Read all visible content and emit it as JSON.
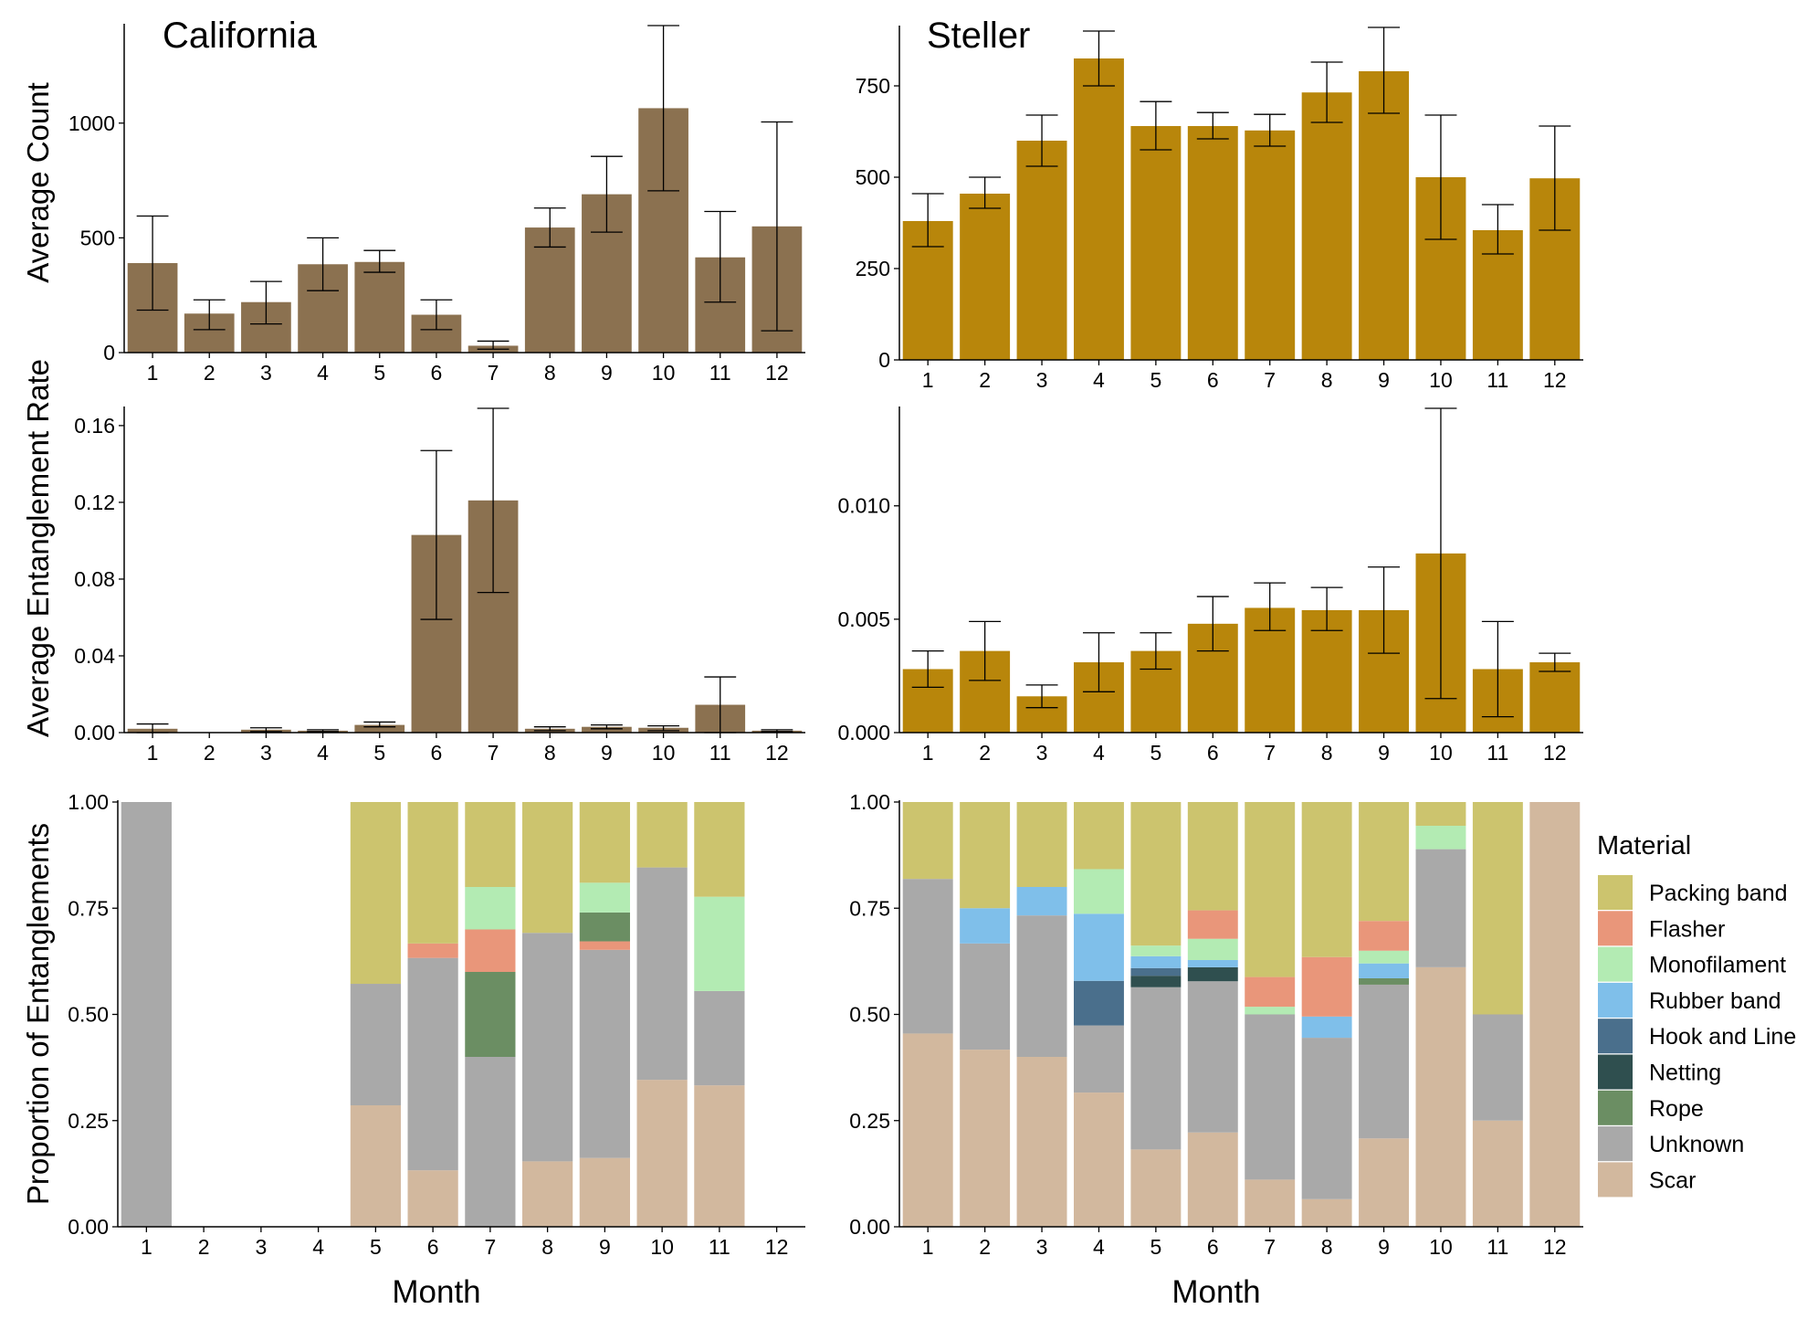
{
  "labels": {
    "california": "California",
    "steller": "Steller",
    "y_count": "Average Count",
    "y_rate": "Average Entanglement Rate",
    "y_prop": "Proportion of Entanglements",
    "x_month": "Month",
    "legend_title": "Material"
  },
  "colors": {
    "california_bar": "#8B7150",
    "steller_bar": "#B8860B",
    "materials": {
      "Packing band": "#CCC46E",
      "Flasher": "#E9967A",
      "Monofilament": "#B3EBB3",
      "Rubber band": "#7FBFEA",
      "Hook and Line": "#4A6F8C",
      "Netting": "#2F4F4F",
      "Rope": "#6B8E63",
      "Unknown": "#A9A9A9",
      "Scar": "#D2B89E"
    }
  },
  "chart_data": [
    {
      "type": "bar",
      "id": "ca_count",
      "title": "California",
      "categories": [
        "1",
        "2",
        "3",
        "4",
        "5",
        "6",
        "7",
        "8",
        "9",
        "10",
        "11",
        "12"
      ],
      "values": [
        390,
        170,
        220,
        385,
        395,
        165,
        30,
        545,
        690,
        1065,
        415,
        550
      ],
      "error_low": [
        185,
        100,
        125,
        270,
        350,
        100,
        15,
        460,
        525,
        705,
        220,
        95
      ],
      "error_high": [
        595,
        230,
        310,
        500,
        445,
        230,
        50,
        630,
        855,
        1425,
        615,
        1005
      ],
      "ylim": [
        0,
        1425
      ],
      "yticks": [
        0,
        500,
        1000
      ],
      "ylabel": "Average Count"
    },
    {
      "type": "bar",
      "id": "st_count",
      "title": "Steller",
      "categories": [
        "1",
        "2",
        "3",
        "4",
        "5",
        "6",
        "7",
        "8",
        "9",
        "10",
        "11",
        "12"
      ],
      "values": [
        380,
        455,
        600,
        825,
        640,
        640,
        628,
        732,
        790,
        500,
        355,
        497
      ],
      "error_low": [
        310,
        415,
        530,
        750,
        575,
        605,
        585,
        650,
        675,
        330,
        290,
        355
      ],
      "error_high": [
        455,
        500,
        670,
        900,
        707,
        677,
        672,
        815,
        910,
        670,
        425,
        640
      ],
      "ylim": [
        0,
        910
      ],
      "yticks": [
        0,
        250,
        500,
        750
      ]
    },
    {
      "type": "bar",
      "id": "ca_rate",
      "categories": [
        "1",
        "2",
        "3",
        "4",
        "5",
        "6",
        "7",
        "8",
        "9",
        "10",
        "11",
        "12"
      ],
      "values": [
        0.002,
        0,
        0.0015,
        0.001,
        0.004,
        0.103,
        0.121,
        0.002,
        0.003,
        0.0025,
        0.0145,
        0.001
      ],
      "error_low": [
        0,
        0,
        0.0005,
        0.0005,
        0.003,
        0.059,
        0.073,
        0.001,
        0.002,
        0.001,
        0,
        0.0005
      ],
      "error_high": [
        0.0045,
        0,
        0.0025,
        0.0015,
        0.0055,
        0.147,
        0.169,
        0.003,
        0.004,
        0.0035,
        0.029,
        0.0015
      ],
      "ylim": [
        0,
        0.169
      ],
      "yticks": [
        0.0,
        0.04,
        0.08,
        0.12,
        0.16
      ],
      "ytick_labels": [
        "0.00",
        "0.04",
        "0.08",
        "0.12",
        "0.16"
      ],
      "ylabel": "Average Entanglement Rate"
    },
    {
      "type": "bar",
      "id": "st_rate",
      "categories": [
        "1",
        "2",
        "3",
        "4",
        "5",
        "6",
        "7",
        "8",
        "9",
        "10",
        "11",
        "12"
      ],
      "values": [
        0.0028,
        0.0036,
        0.0016,
        0.0031,
        0.0036,
        0.0048,
        0.0055,
        0.0054,
        0.0054,
        0.0079,
        0.0028,
        0.0031
      ],
      "error_low": [
        0.002,
        0.0023,
        0.0011,
        0.0018,
        0.0028,
        0.0036,
        0.0045,
        0.0045,
        0.0035,
        0.0015,
        0.0007,
        0.0027
      ],
      "error_high": [
        0.0036,
        0.0049,
        0.0021,
        0.0044,
        0.0044,
        0.006,
        0.0066,
        0.0064,
        0.0073,
        0.0143,
        0.0049,
        0.0035
      ],
      "ylim": [
        0,
        0.0143
      ],
      "yticks": [
        0,
        0.005,
        0.01
      ],
      "ytick_labels": [
        "0.000",
        "0.005",
        "0.010"
      ]
    },
    {
      "type": "bar",
      "stacked": true,
      "id": "ca_prop",
      "xlabel": "Month",
      "categories": [
        "1",
        "2",
        "3",
        "4",
        "5",
        "6",
        "7",
        "8",
        "9",
        "10",
        "11",
        "12"
      ],
      "ylim": [
        0,
        1
      ],
      "yticks": [
        0,
        0.25,
        0.5,
        0.75,
        1
      ],
      "ytick_labels": [
        "0.00",
        "0.25",
        "0.50",
        "0.75",
        "1.00"
      ],
      "ylabel": "Proportion of Entanglements",
      "series": [
        {
          "name": "Scar",
          "values": [
            0,
            0,
            0,
            0,
            0.286,
            0.133,
            0,
            0.154,
            0.162,
            0.346,
            0.333,
            0
          ]
        },
        {
          "name": "Unknown",
          "values": [
            1,
            0,
            0,
            0,
            0.286,
            0.5,
            0.4,
            0.538,
            0.49,
            0.5,
            0.222,
            0
          ]
        },
        {
          "name": "Rope",
          "values": [
            0,
            0,
            0,
            0,
            0,
            0,
            0.2,
            0,
            0,
            0,
            0,
            0
          ]
        },
        {
          "name": "Netting",
          "values": [
            0,
            0,
            0,
            0,
            0,
            0,
            0,
            0,
            0,
            0,
            0,
            0
          ]
        },
        {
          "name": "Hook and Line",
          "values": [
            0,
            0,
            0,
            0,
            0,
            0,
            0,
            0,
            0,
            0,
            0,
            0
          ]
        },
        {
          "name": "Rubber band",
          "values": [
            0,
            0,
            0,
            0,
            0,
            0,
            0,
            0,
            0,
            0,
            0,
            0
          ]
        },
        {
          "name": "Flasher",
          "values": [
            0,
            0,
            0,
            0,
            0,
            0.034,
            0.1,
            0,
            0.02,
            0,
            0,
            0
          ]
        },
        {
          "name": "Rope",
          "values": [
            0,
            0,
            0,
            0,
            0,
            0,
            0,
            0,
            0.068,
            0,
            0,
            0
          ]
        },
        {
          "name": "Monofilament",
          "values": [
            0,
            0,
            0,
            0,
            0,
            0,
            0.1,
            0,
            0.07,
            0,
            0.222,
            0
          ]
        },
        {
          "name": "Packing band",
          "values": [
            0,
            0,
            0,
            0,
            0.428,
            0.333,
            0.2,
            0.308,
            0.19,
            0.154,
            0.223,
            0
          ]
        }
      ]
    },
    {
      "type": "bar",
      "stacked": true,
      "id": "st_prop",
      "xlabel": "Month",
      "categories": [
        "1",
        "2",
        "3",
        "4",
        "5",
        "6",
        "7",
        "8",
        "9",
        "10",
        "11",
        "12"
      ],
      "ylim": [
        0,
        1
      ],
      "yticks": [
        0,
        0.25,
        0.5,
        0.75,
        1
      ],
      "ytick_labels": [
        "0.00",
        "0.25",
        "0.50",
        "0.75",
        "1.00"
      ],
      "legend": {
        "title": "Material",
        "placement": "right"
      },
      "series": [
        {
          "name": "Scar",
          "values": [
            0.455,
            0.417,
            0.4,
            0.316,
            0.182,
            0.222,
            0.111,
            0.065,
            0.208,
            0.611,
            0.25,
            1
          ]
        },
        {
          "name": "Unknown",
          "values": [
            0.364,
            0.25,
            0.333,
            0.158,
            0.382,
            0.356,
            0.389,
            0.38,
            0.362,
            0.278,
            0.25,
            0
          ]
        },
        {
          "name": "Rope",
          "values": [
            0,
            0,
            0,
            0,
            0,
            0,
            0,
            0,
            0.015,
            0,
            0,
            0
          ]
        },
        {
          "name": "Netting",
          "values": [
            0,
            0,
            0,
            0,
            0.027,
            0.033,
            0,
            0,
            0,
            0,
            0,
            0
          ]
        },
        {
          "name": "Hook and Line",
          "values": [
            0,
            0,
            0,
            0.105,
            0.018,
            0,
            0,
            0,
            0,
            0,
            0,
            0
          ]
        },
        {
          "name": "Rubber band",
          "values": [
            0,
            0.083,
            0.067,
            0.158,
            0.028,
            0.017,
            0,
            0.05,
            0.035,
            0,
            0,
            0
          ]
        },
        {
          "name": "Monofilament",
          "values": [
            0,
            0,
            0,
            0.105,
            0.025,
            0.05,
            0.018,
            0,
            0.03,
            0.055,
            0,
            0
          ]
        },
        {
          "name": "Flasher",
          "values": [
            0,
            0,
            0,
            0,
            0,
            0.067,
            0.07,
            0.14,
            0.07,
            0,
            0,
            0
          ]
        },
        {
          "name": "Packing band",
          "values": [
            0.181,
            0.25,
            0.2,
            0.158,
            0.338,
            0.255,
            0.412,
            0.365,
            0.28,
            0.056,
            0.5,
            0
          ]
        }
      ]
    }
  ],
  "legend_order": [
    "Packing band",
    "Flasher",
    "Monofilament",
    "Rubber band",
    "Hook and Line",
    "Netting",
    "Rope",
    "Unknown",
    "Scar"
  ]
}
